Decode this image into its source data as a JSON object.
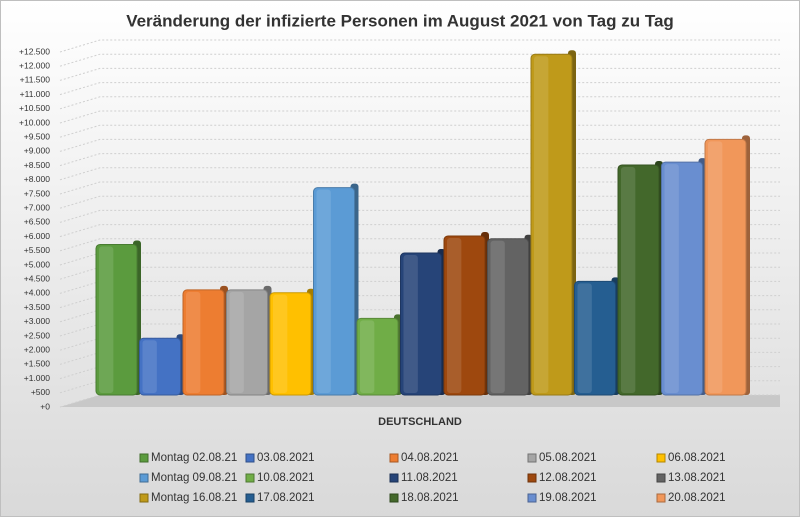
{
  "chart_data": {
    "type": "bar",
    "title": "Veränderung der infizierte Personen im August 2021 von Tag zu Tag",
    "categories": [
      "DEUTSCHLAND"
    ],
    "series": [
      {
        "name": "Montag 02.08.21",
        "color": "#5b9b3e",
        "values": [
          5300
        ]
      },
      {
        "name": "03.08.2021",
        "color": "#4472c4",
        "values": [
          2000
        ]
      },
      {
        "name": "04.08.2021",
        "color": "#ed7d31",
        "values": [
          3700
        ]
      },
      {
        "name": "05.08.2021",
        "color": "#a5a5a5",
        "values": [
          3700
        ]
      },
      {
        "name": "06.08.2021",
        "color": "#ffc000",
        "values": [
          3600
        ]
      },
      {
        "name": "Montag 09.08.21",
        "color": "#5b9bd5",
        "values": [
          7300
        ]
      },
      {
        "name": "10.08.2021",
        "color": "#70ad47",
        "values": [
          2700
        ]
      },
      {
        "name": "11.08.2021",
        "color": "#264478",
        "values": [
          5000
        ]
      },
      {
        "name": "12.08.2021",
        "color": "#9e480e",
        "values": [
          5600
        ]
      },
      {
        "name": "13.08.2021",
        "color": "#636363",
        "values": [
          5500
        ]
      },
      {
        "name": "Montag 16.08.21",
        "color": "#bf9a1a",
        "values": [
          12000
        ]
      },
      {
        "name": "17.08.2021",
        "color": "#255e91",
        "values": [
          4000
        ]
      },
      {
        "name": "18.08.2021",
        "color": "#43682b",
        "values": [
          8100
        ]
      },
      {
        "name": "19.08.2021",
        "color": "#698ed0",
        "values": [
          8200
        ]
      },
      {
        "name": "20.08.2021",
        "color": "#f1975a",
        "values": [
          9000
        ]
      }
    ],
    "ylim": [
      0,
      12500
    ],
    "yticks": [
      {
        "value": 0,
        "label": "+0"
      },
      {
        "value": 500,
        "label": "+500"
      },
      {
        "value": 1000,
        "label": "+1.000"
      },
      {
        "value": 1500,
        "label": "+1.500"
      },
      {
        "value": 2000,
        "label": "+2.000"
      },
      {
        "value": 2500,
        "label": "+2.500"
      },
      {
        "value": 3000,
        "label": "+3.000"
      },
      {
        "value": 3500,
        "label": "+3.500"
      },
      {
        "value": 4000,
        "label": "+4.000"
      },
      {
        "value": 4500,
        "label": "+4.500"
      },
      {
        "value": 5000,
        "label": "+5.000"
      },
      {
        "value": 5500,
        "label": "+5.500"
      },
      {
        "value": 6000,
        "label": "+6.000"
      },
      {
        "value": 6500,
        "label": "+6.500"
      },
      {
        "value": 7000,
        "label": "+7.000"
      },
      {
        "value": 7500,
        "label": "+7.500"
      },
      {
        "value": 8000,
        "label": "+8.000"
      },
      {
        "value": 8500,
        "label": "+8.500"
      },
      {
        "value": 9000,
        "label": "+9.000"
      },
      {
        "value": 9500,
        "label": "+9.500"
      },
      {
        "value": 10000,
        "label": "+10.000"
      },
      {
        "value": 10500,
        "label": "+10.500"
      },
      {
        "value": 11000,
        "label": "+11.000"
      },
      {
        "value": 11500,
        "label": "+11.500"
      },
      {
        "value": 12000,
        "label": "+12.000"
      },
      {
        "value": 12500,
        "label": "+12.500"
      }
    ],
    "grid": true,
    "legend": "bottom"
  }
}
